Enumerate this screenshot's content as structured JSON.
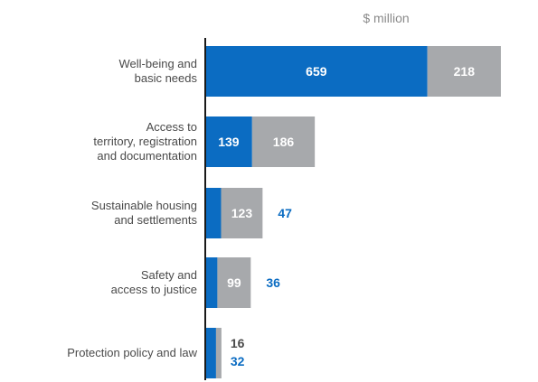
{
  "chart_data": {
    "type": "bar",
    "orientation": "horizontal",
    "stacked": true,
    "unit_label": "$ million",
    "categories": [
      [
        "Well-being and",
        "basic needs"
      ],
      [
        "Access to",
        "territory, registration",
        "and documentation"
      ],
      [
        "Sustainable housing",
        "and settlements"
      ],
      [
        "Safety and",
        "access to justice"
      ],
      [
        "Protection policy and law"
      ]
    ],
    "series": [
      {
        "color": "#0b6cc2",
        "values": [
          659,
          139,
          47,
          36,
          32
        ]
      },
      {
        "color": "#a7a9ac",
        "values": [
          218,
          186,
          123,
          99,
          16
        ]
      }
    ],
    "xlim": [
      0,
      880
    ],
    "grid": false,
    "legend": "none"
  }
}
